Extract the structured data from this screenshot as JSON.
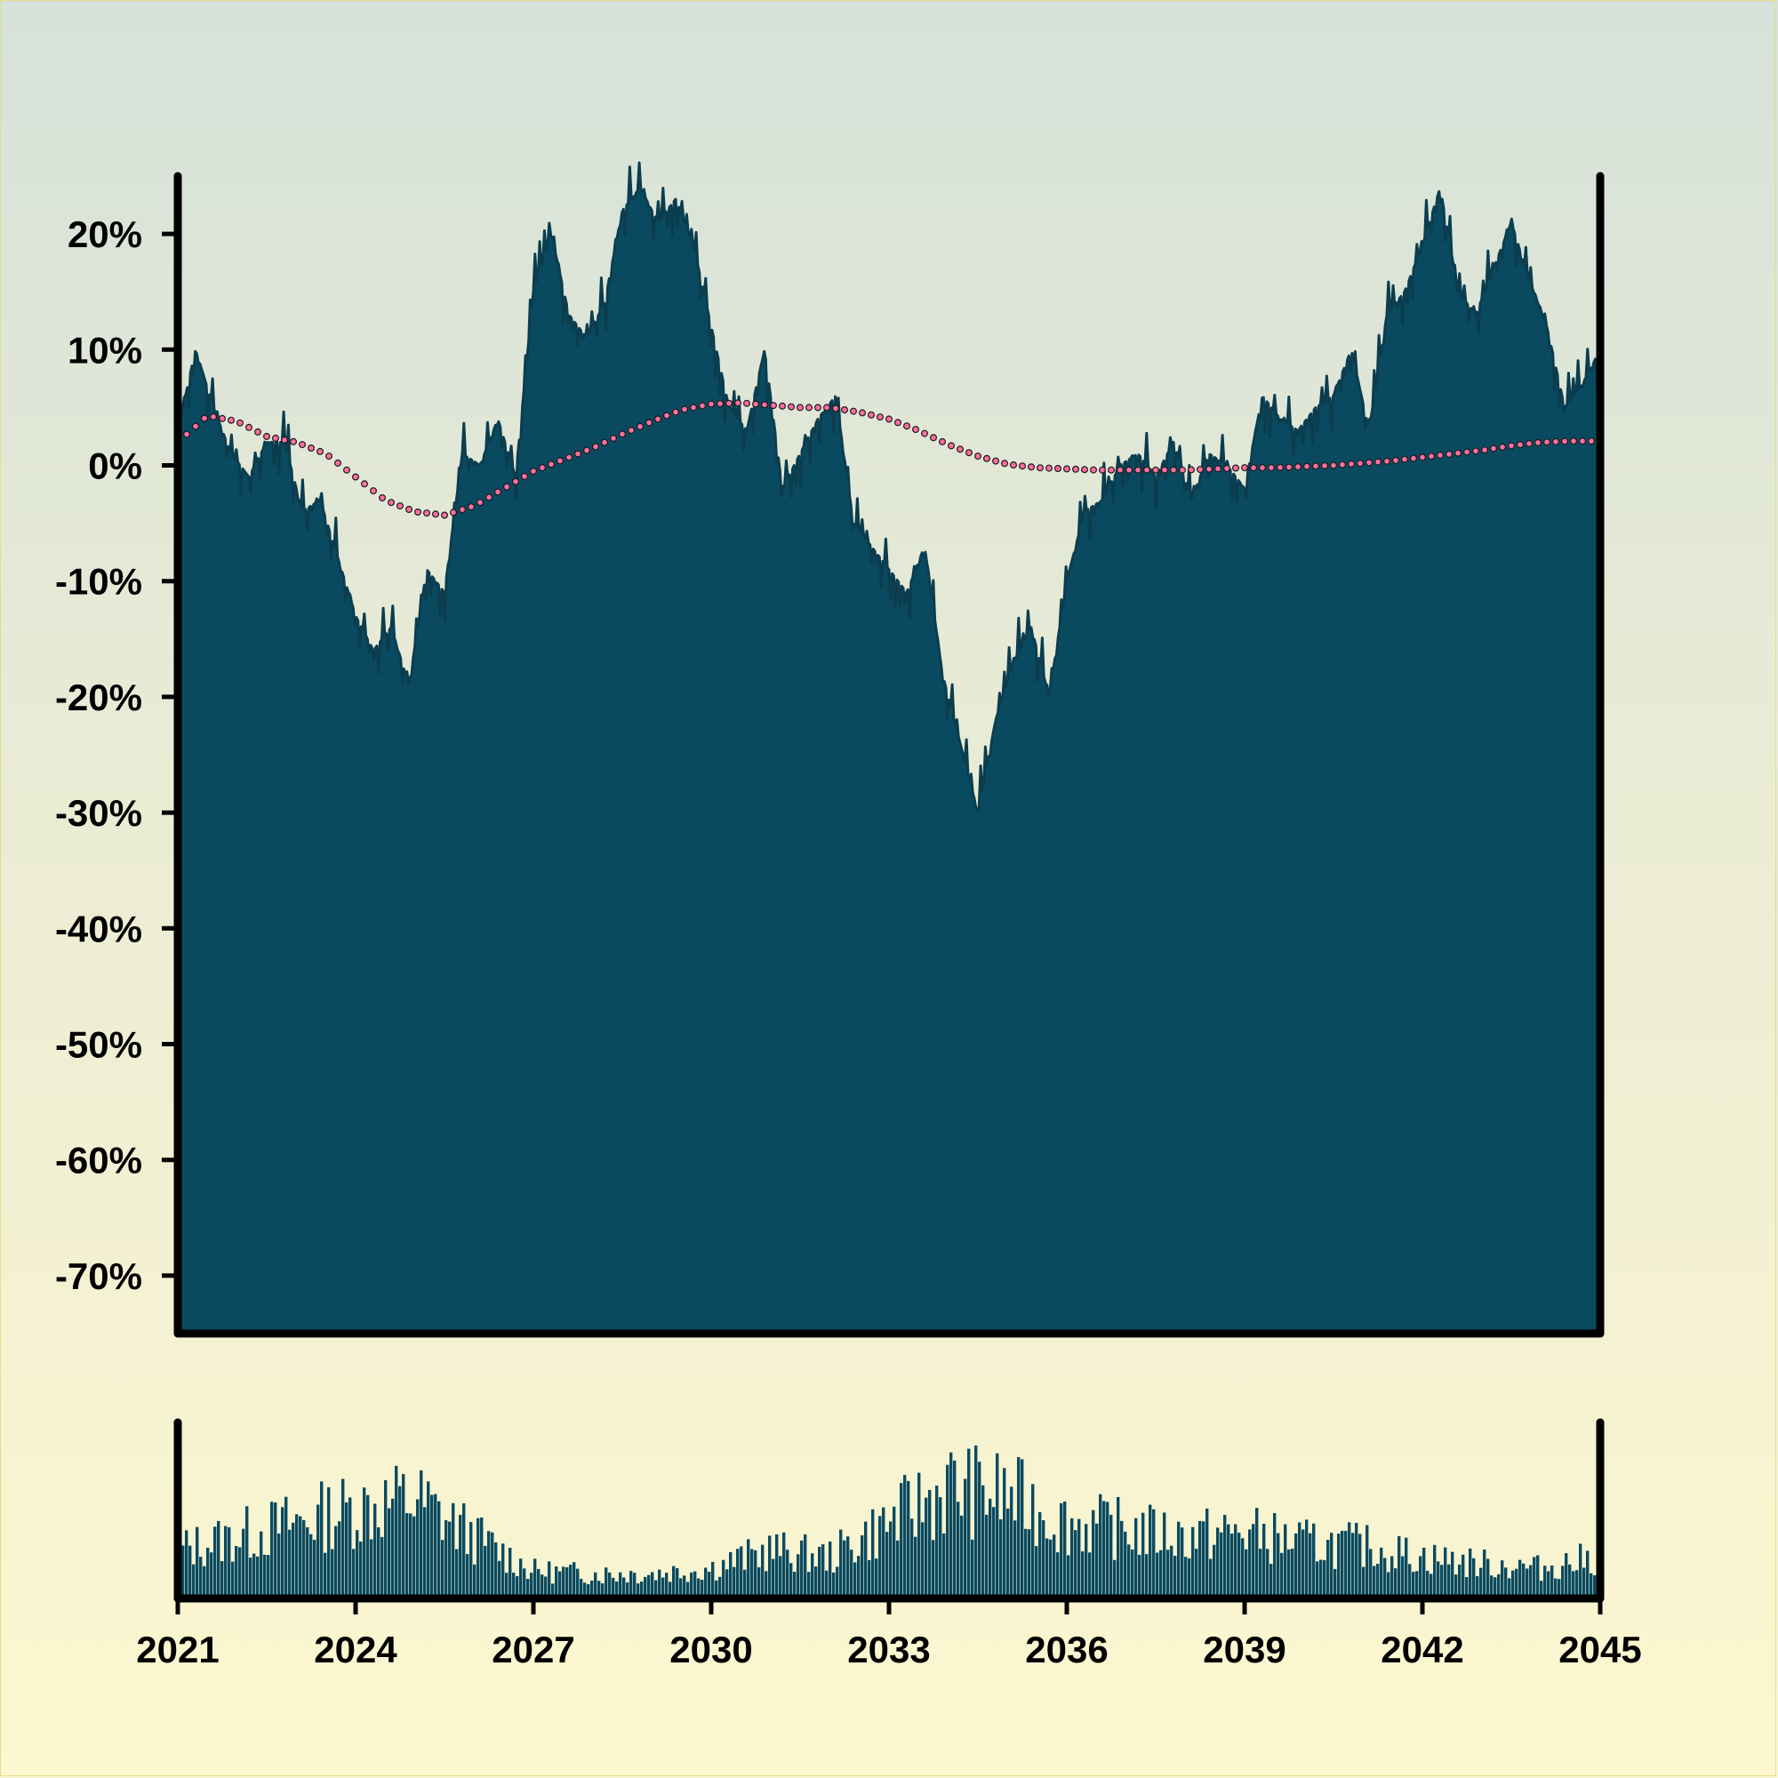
{
  "chart_data": [
    {
      "type": "area",
      "x_range": [
        2021,
        2045
      ],
      "ylim": [
        -75,
        25
      ],
      "y_ticks": [
        20,
        10,
        0,
        -10,
        -20,
        -30,
        -40,
        -50,
        -60,
        -70
      ],
      "y_tick_labels": [
        "20%",
        "10%",
        "0%",
        "-10%",
        "-20%",
        "-30%",
        "-40%",
        "-50%",
        "-60%",
        "-70%"
      ],
      "series": [
        {
          "kind": "area",
          "color": "#0a4a60",
          "x": [
            2021.0,
            2021.3,
            2021.6,
            2021.9,
            2022.2,
            2022.5,
            2022.8,
            2023.1,
            2023.4,
            2023.7,
            2024.0,
            2024.3,
            2024.6,
            2024.9,
            2025.2,
            2025.5,
            2025.8,
            2026.1,
            2026.4,
            2026.7,
            2027.0,
            2027.3,
            2027.6,
            2027.9,
            2028.2,
            2028.5,
            2028.8,
            2029.1,
            2029.4,
            2029.7,
            2030.0,
            2030.3,
            2030.6,
            2030.9,
            2031.2,
            2031.5,
            2031.8,
            2032.1,
            2032.4,
            2032.7,
            2033.0,
            2033.3,
            2033.6,
            2033.9,
            2034.2,
            2034.5,
            2034.8,
            2035.1,
            2035.4,
            2035.7,
            2036.0,
            2036.3,
            2036.6,
            2036.9,
            2037.2,
            2037.5,
            2037.8,
            2038.1,
            2038.4,
            2038.7,
            2039.0,
            2039.3,
            2039.6,
            2039.9,
            2040.2,
            2040.5,
            2040.8,
            2041.1,
            2041.4,
            2041.7,
            2042.0,
            2042.3,
            2042.6,
            2042.9,
            2043.2,
            2043.5,
            2043.8,
            2044.1,
            2044.4,
            2044.7,
            2045.0
          ],
          "y": [
            3,
            10,
            5,
            1,
            -1,
            2,
            2,
            -4,
            -3,
            -8,
            -13,
            -16,
            -14,
            -19,
            -9,
            -11,
            1,
            0,
            4,
            -1,
            15,
            20,
            13,
            11,
            14,
            22,
            24,
            21,
            23,
            19,
            12,
            5,
            3,
            10,
            -2,
            1,
            4,
            6,
            -5,
            -7,
            -9,
            -11,
            -7,
            -18,
            -24,
            -30,
            -22,
            -17,
            -14,
            -20,
            -10,
            -4,
            -3,
            0,
            1,
            -1,
            2,
            -3,
            1,
            0,
            -2,
            6,
            4,
            3,
            5,
            6,
            10,
            3,
            13,
            15,
            19,
            24,
            15,
            13,
            17,
            21,
            16,
            12,
            5,
            7,
            10
          ],
          "smooth_line": {
            "style": "dotted",
            "color": "#ff6fa0",
            "x": [
              2021.0,
              2021.5,
              2022.0,
              2022.5,
              2023.0,
              2023.5,
              2024.0,
              2024.5,
              2025.0,
              2025.5,
              2026.0,
              2026.5,
              2027.0,
              2027.5,
              2028.0,
              2028.5,
              2029.0,
              2029.5,
              2030.0,
              2030.5,
              2031.0,
              2031.5,
              2032.0,
              2032.5,
              2033.0,
              2033.5,
              2034.0,
              2034.5,
              2035.0,
              2035.5,
              2036.0,
              2036.5,
              2037.0,
              2037.5,
              2038.0,
              2038.5,
              2039.0,
              2039.5,
              2040.0,
              2040.5,
              2041.0,
              2041.5,
              2042.0,
              2042.5,
              2043.0,
              2043.5,
              2044.0,
              2044.5,
              2045.0
            ],
            "y": [
              2,
              4.3,
              3.8,
              2.5,
              2,
              1,
              -1,
              -3,
              -4,
              -4.3,
              -3.5,
              -2,
              -0.5,
              0.5,
              1.5,
              2.7,
              3.8,
              4.8,
              5.3,
              5.4,
              5.2,
              5,
              5,
              4.6,
              4,
              3,
              1.8,
              0.8,
              0.1,
              -0.2,
              -0.3,
              -0.4,
              -0.4,
              -0.4,
              -0.4,
              -0.3,
              -0.2,
              -0.2,
              -0.1,
              0,
              0.2,
              0.4,
              0.7,
              1,
              1.3,
              1.7,
              2,
              2.1,
              2.1
            ]
          }
        }
      ]
    },
    {
      "type": "bar",
      "color": "#0a4a60",
      "x_range": [
        2021,
        2045
      ],
      "x_ticks": [
        2021,
        2024,
        2027,
        2030,
        2033,
        2036,
        2039,
        2042,
        2045
      ],
      "x_tick_labels": [
        "2021",
        "2024",
        "2027",
        "2030",
        "2033",
        "2036",
        "2039",
        "2042",
        "2045"
      ],
      "envelope_x": [
        2021,
        2022,
        2023,
        2024,
        2025,
        2026,
        2027,
        2028,
        2029,
        2030,
        2031,
        2032,
        2033,
        2034,
        2035,
        2036,
        2037,
        2038,
        2039,
        2040,
        2041,
        2042,
        2043,
        2044,
        2045
      ],
      "envelope_y": [
        0.35,
        0.45,
        0.55,
        0.65,
        0.72,
        0.45,
        0.2,
        0.18,
        0.18,
        0.22,
        0.35,
        0.3,
        0.55,
        0.8,
        0.75,
        0.55,
        0.5,
        0.45,
        0.48,
        0.4,
        0.38,
        0.3,
        0.25,
        0.22,
        0.3
      ]
    }
  ]
}
